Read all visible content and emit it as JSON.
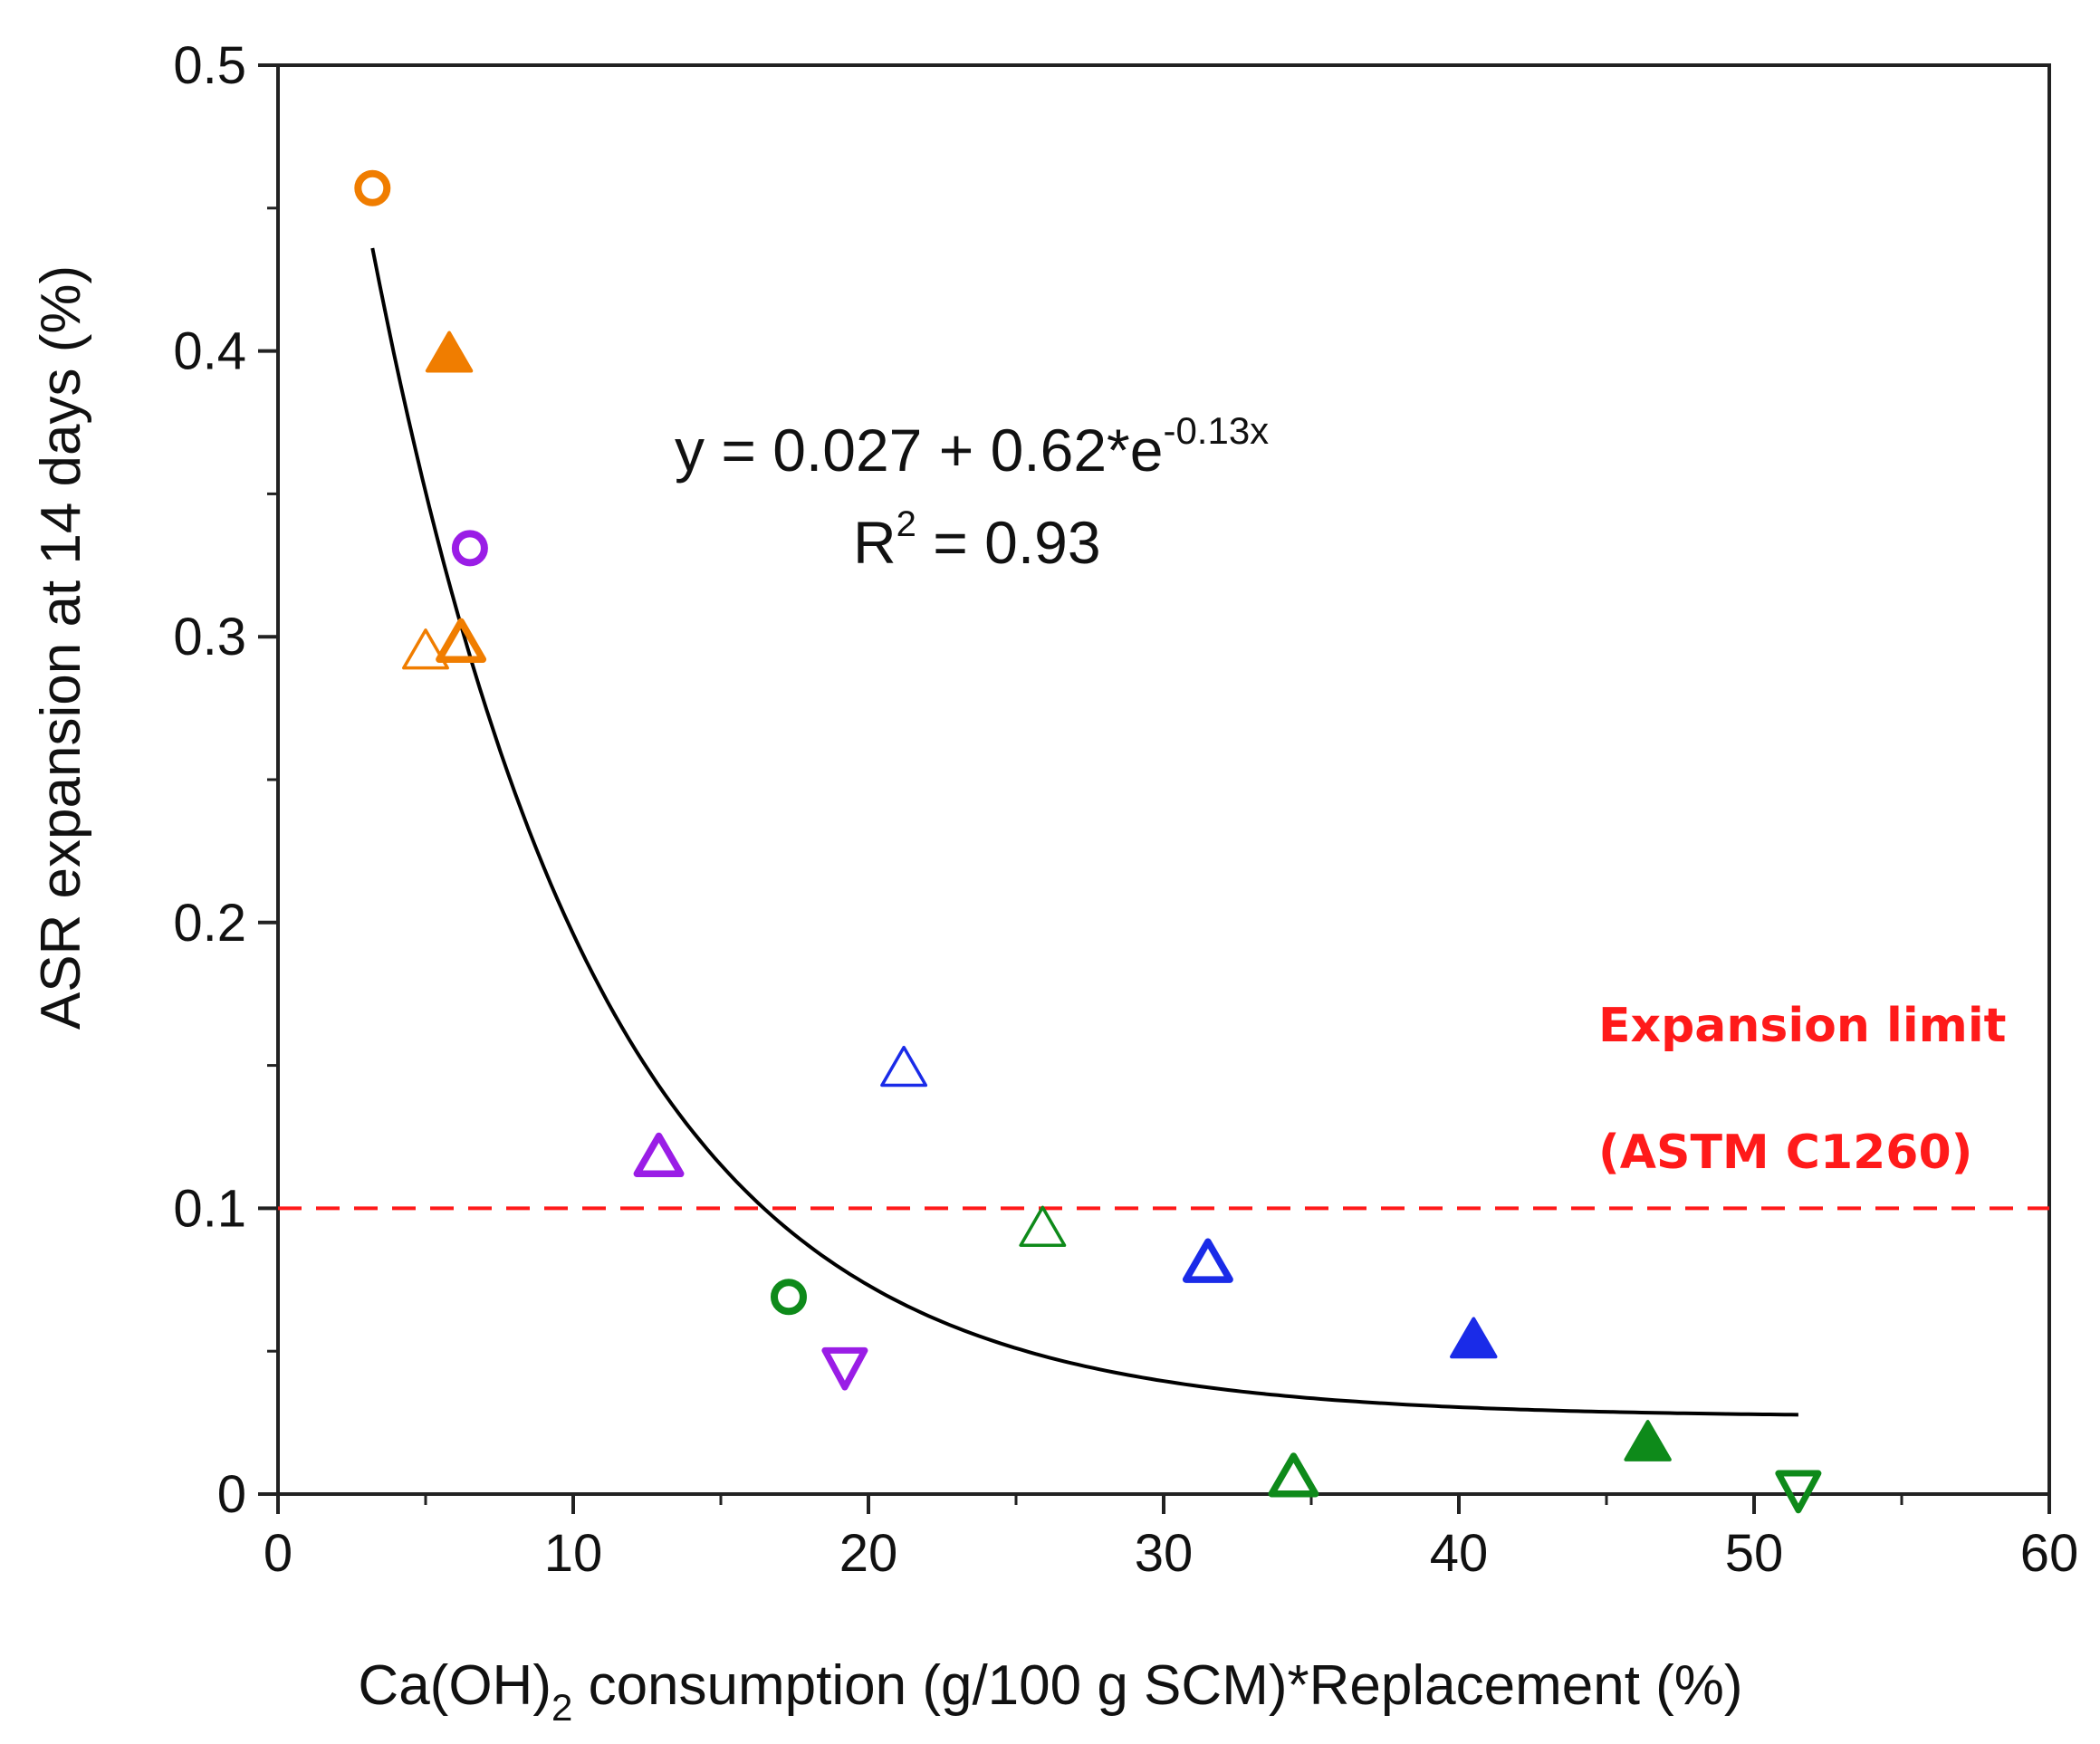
{
  "chart_data": {
    "type": "scatter",
    "xlabel_main": "Ca(OH)",
    "xlabel_sub": "2",
    "xlabel_rest": " consumption (g/100 g SCM)*Replacement (%)",
    "ylabel": "ASR expansion at 14 days (%)",
    "xlim": [
      0,
      60
    ],
    "ylim": [
      0,
      0.5
    ],
    "x_ticks": [
      "0",
      "10",
      "20",
      "30",
      "40",
      "50",
      "60"
    ],
    "y_ticks": [
      "0",
      "0.1",
      "0.2",
      "0.3",
      "0.4",
      "0.5"
    ],
    "points": [
      {
        "x": 3.2,
        "y": 0.457,
        "marker": "circle-open",
        "color": "#f07d00"
      },
      {
        "x": 5.8,
        "y": 0.399,
        "marker": "triangle-filled",
        "color": "#f07d00"
      },
      {
        "x": 5.0,
        "y": 0.295,
        "marker": "triangle-thin",
        "color": "#f07d00"
      },
      {
        "x": 6.2,
        "y": 0.298,
        "marker": "triangle-open",
        "color": "#f07d00"
      },
      {
        "x": 6.5,
        "y": 0.331,
        "marker": "circle-open",
        "color": "#9a1de6"
      },
      {
        "x": 12.9,
        "y": 0.118,
        "marker": "triangle-open",
        "color": "#9a1de6"
      },
      {
        "x": 19.2,
        "y": 0.044,
        "marker": "triangle-down-open",
        "color": "#9a1de6"
      },
      {
        "x": 17.3,
        "y": 0.069,
        "marker": "circle-open",
        "color": "#0e8a1a"
      },
      {
        "x": 25.9,
        "y": 0.093,
        "marker": "triangle-thin",
        "color": "#0e8a1a"
      },
      {
        "x": 34.4,
        "y": 0.006,
        "marker": "triangle-open",
        "color": "#0e8a1a"
      },
      {
        "x": 46.4,
        "y": 0.018,
        "marker": "triangle-filled",
        "color": "#0e8a1a"
      },
      {
        "x": 51.5,
        "y": 0.001,
        "marker": "triangle-down-open",
        "color": "#0e8a1a"
      },
      {
        "x": 21.2,
        "y": 0.149,
        "marker": "triangle-thin",
        "color": "#1a2be8"
      },
      {
        "x": 31.5,
        "y": 0.081,
        "marker": "triangle-open",
        "color": "#1a2be8"
      },
      {
        "x": 40.5,
        "y": 0.054,
        "marker": "triangle-filled",
        "color": "#1a2be8"
      }
    ],
    "fit": {
      "a": 0.027,
      "b": 0.62,
      "k": -0.13,
      "x_range": [
        3.2,
        51.5
      ],
      "equation_lead": "y = 0.027 + 0.62*e",
      "equation_exp": "-0.13x",
      "r2_lead": "R",
      "r2_sup": "2",
      "r2_rest": " = 0.93",
      "color": "#000000"
    },
    "limit": {
      "y": 0.1,
      "color": "#ff1a1a",
      "label_line1": "Expansion limit",
      "label_line2": "(ASTM C1260)"
    }
  }
}
